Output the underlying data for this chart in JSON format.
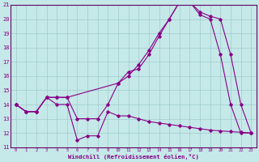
{
  "xlabel": "Windchill (Refroidissement éolien,°C)",
  "bg_color": "#c5e8e8",
  "grid_color": "#a0cccc",
  "line_color": "#880088",
  "xlim": [
    -0.5,
    23.5
  ],
  "ylim": [
    11,
    21
  ],
  "xticks": [
    0,
    1,
    2,
    3,
    4,
    5,
    6,
    7,
    8,
    9,
    10,
    11,
    12,
    13,
    14,
    15,
    16,
    17,
    18,
    19,
    20,
    21,
    22,
    23
  ],
  "yticks": [
    11,
    12,
    13,
    14,
    15,
    16,
    17,
    18,
    19,
    20,
    21
  ],
  "line1_x": [
    0,
    1,
    2,
    3,
    4,
    5,
    6,
    7,
    8,
    9,
    10,
    11,
    12,
    13,
    14,
    15,
    16,
    17,
    18,
    19,
    20,
    21,
    22,
    23
  ],
  "line1_y": [
    14.0,
    13.5,
    13.5,
    14.5,
    14.0,
    14.0,
    11.5,
    11.8,
    11.8,
    13.5,
    13.2,
    13.2,
    13.0,
    12.8,
    12.7,
    12.6,
    12.5,
    12.4,
    12.3,
    12.2,
    12.15,
    12.1,
    12.05,
    12.0
  ],
  "line2_x": [
    0,
    1,
    2,
    3,
    4,
    5,
    6,
    7,
    8,
    9,
    10,
    11,
    12,
    13,
    14,
    15,
    16,
    17,
    18,
    19,
    20,
    21,
    22,
    23
  ],
  "line2_y": [
    14.0,
    13.5,
    13.5,
    14.5,
    14.5,
    14.5,
    13.0,
    13.0,
    13.0,
    14.0,
    15.5,
    16.3,
    16.5,
    17.5,
    18.8,
    20.0,
    21.2,
    21.2,
    20.3,
    20.0,
    17.5,
    14.0,
    12.0,
    12.0
  ],
  "line3_x": [
    0,
    1,
    2,
    3,
    4,
    5,
    10,
    11,
    12,
    13,
    14,
    15,
    16,
    17,
    18,
    19,
    20,
    21,
    22,
    23
  ],
  "line3_y": [
    14.0,
    13.5,
    13.5,
    14.5,
    14.5,
    14.5,
    15.5,
    16.0,
    16.8,
    17.8,
    19.0,
    20.0,
    21.2,
    21.2,
    20.5,
    20.2,
    20.0,
    17.5,
    14.0,
    12.0
  ]
}
